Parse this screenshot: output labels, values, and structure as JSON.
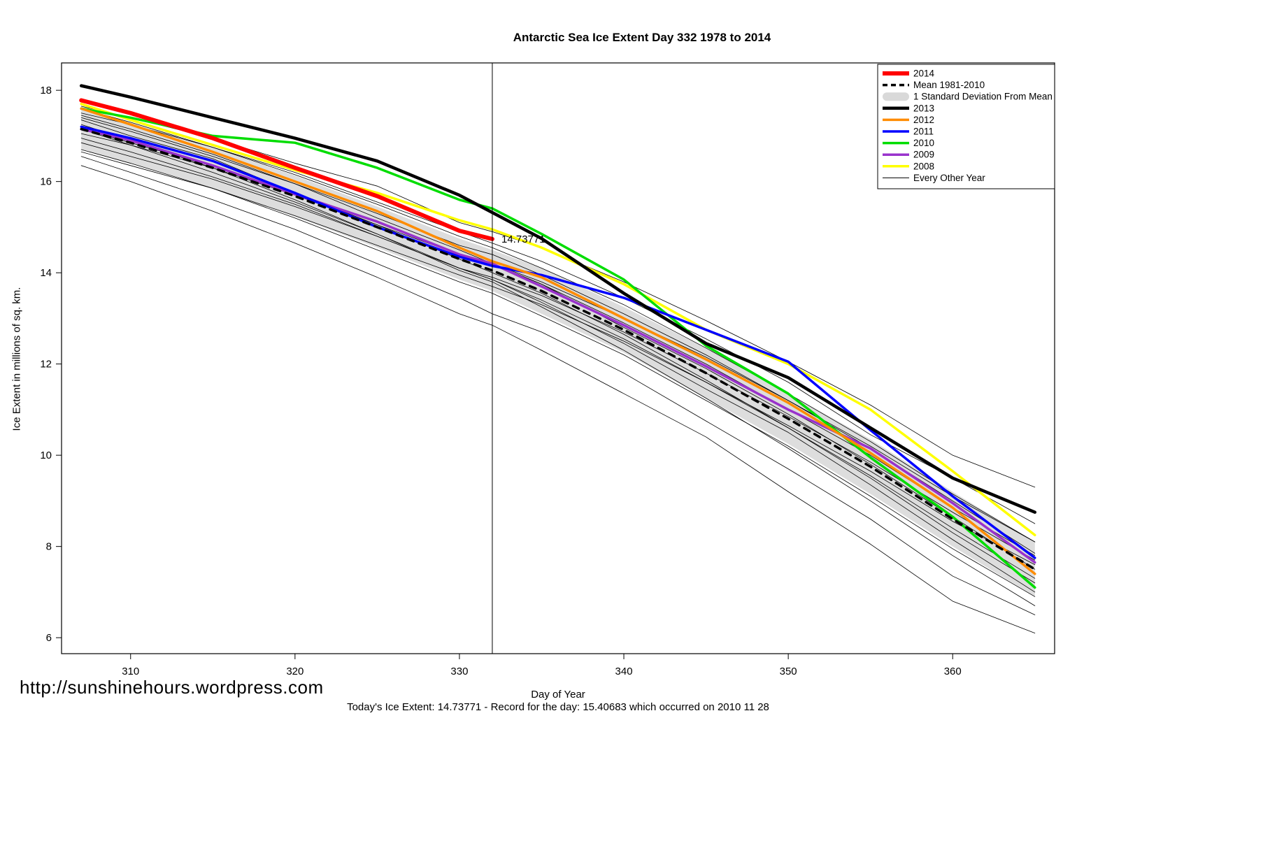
{
  "page": {
    "footer_url": "http://sunshinehours.wordpress.com",
    "footer_status": "Today's Ice Extent: 14.73771  - Record for the day: 15.40683 which occurred on 2010 11 28"
  },
  "chart_data": {
    "type": "line",
    "title": "Antarctic Sea Ice Extent Day 332 1978 to 2014",
    "xlabel": "Day of Year",
    "ylabel": "Ice Extent in millions of sq. km.",
    "xlim": [
      305.8,
      366.2
    ],
    "ylim": [
      5.65,
      18.6
    ],
    "xticks": [
      310,
      320,
      330,
      340,
      350,
      360
    ],
    "yticks": [
      6,
      8,
      10,
      12,
      14,
      16,
      18
    ],
    "grid": false,
    "legend_position": "top-right",
    "x": [
      307,
      310,
      315,
      320,
      325,
      330,
      332,
      335,
      340,
      345,
      350,
      355,
      360,
      365
    ],
    "vline_x": 332,
    "annotation": {
      "text": "14.73771",
      "x": 332.3,
      "y": 14.74,
      "color": "#ff0000"
    },
    "mean": {
      "name": "Mean 1981-2010",
      "color": "#000000",
      "width": 3.5,
      "values": [
        17.15,
        16.85,
        16.3,
        15.68,
        15.0,
        14.3,
        14.05,
        13.6,
        12.75,
        11.8,
        10.8,
        9.75,
        8.6,
        7.5
      ]
    },
    "band": {
      "name": "1 Standard Deviation From Mean",
      "color": "#d9d9d9",
      "upper": [
        17.6,
        17.3,
        16.75,
        16.13,
        15.45,
        14.75,
        14.5,
        14.1,
        13.25,
        12.35,
        11.35,
        10.35,
        9.2,
        8.1
      ],
      "lower": [
        16.7,
        16.4,
        15.85,
        15.23,
        14.55,
        13.85,
        13.6,
        13.1,
        12.25,
        11.25,
        10.25,
        9.15,
        8.0,
        6.9
      ]
    },
    "series": [
      {
        "name": "2014",
        "color": "#ff0000",
        "width": 6,
        "values": [
          17.78,
          17.5,
          16.95,
          16.3,
          15.68,
          14.92,
          14.74,
          null,
          null,
          null,
          null,
          null,
          null,
          null
        ]
      },
      {
        "name": "2013",
        "color": "#000000",
        "width": 4.5,
        "values": [
          18.1,
          17.85,
          17.4,
          16.95,
          16.45,
          15.7,
          15.32,
          14.75,
          13.55,
          12.45,
          11.7,
          10.6,
          9.5,
          8.75
        ]
      },
      {
        "name": "2012",
        "color": "#ff8c00",
        "width": 3.5,
        "values": [
          17.6,
          17.25,
          16.65,
          16.0,
          15.35,
          14.55,
          14.25,
          13.9,
          13.0,
          12.1,
          11.15,
          10.05,
          8.85,
          7.4
        ]
      },
      {
        "name": "2011",
        "color": "#0000ff",
        "width": 3.5,
        "values": [
          17.2,
          16.95,
          16.45,
          15.75,
          15.0,
          14.35,
          14.15,
          13.95,
          13.45,
          12.75,
          12.05,
          10.55,
          9.1,
          7.75
        ]
      },
      {
        "name": "2010",
        "color": "#00dd00",
        "width": 3.5,
        "values": [
          17.6,
          17.4,
          17.0,
          16.85,
          16.3,
          15.6,
          15.41,
          14.85,
          13.85,
          12.4,
          11.35,
          9.95,
          8.65,
          7.1
        ]
      },
      {
        "name": "2009",
        "color": "#9932cc",
        "width": 3.5,
        "values": [
          17.15,
          16.9,
          16.35,
          15.72,
          15.12,
          14.4,
          14.2,
          13.7,
          12.85,
          11.95,
          11.0,
          10.15,
          8.95,
          7.65
        ]
      },
      {
        "name": "2008",
        "color": "#ffff00",
        "width": 3.5,
        "values": [
          17.7,
          17.35,
          16.8,
          16.25,
          15.75,
          15.15,
          14.95,
          14.55,
          13.75,
          12.75,
          12.0,
          11.0,
          9.65,
          8.25
        ]
      }
    ],
    "other_years": {
      "name": "Every Other Year",
      "color": "#000000",
      "width": 0.8,
      "series": [
        [
          17.65,
          17.4,
          16.95,
          16.4,
          15.9,
          15.1,
          14.9,
          14.55,
          13.8,
          12.95,
          12.05,
          11.1,
          10.0,
          9.3
        ],
        [
          17.6,
          17.3,
          16.75,
          16.15,
          15.5,
          14.8,
          14.55,
          14.1,
          13.3,
          12.35,
          11.35,
          10.3,
          9.15,
          8.1
        ],
        [
          17.45,
          17.15,
          16.6,
          15.95,
          15.2,
          14.5,
          14.2,
          13.75,
          12.8,
          11.9,
          10.9,
          9.8,
          8.65,
          7.5
        ],
        [
          17.35,
          17.0,
          16.5,
          15.75,
          15.05,
          14.3,
          14.0,
          13.55,
          12.65,
          11.65,
          10.6,
          9.5,
          8.3,
          7.2
        ],
        [
          17.15,
          16.85,
          16.35,
          15.75,
          15.1,
          14.4,
          14.2,
          13.75,
          12.9,
          12.0,
          11.0,
          10.0,
          8.85,
          7.8
        ],
        [
          17.15,
          16.8,
          16.2,
          15.55,
          14.85,
          14.1,
          13.85,
          13.35,
          12.45,
          11.45,
          10.5,
          9.35,
          8.15,
          7.0
        ],
        [
          16.95,
          16.65,
          16.1,
          15.5,
          14.8,
          14.1,
          13.85,
          13.4,
          12.55,
          11.6,
          10.6,
          9.55,
          8.4,
          7.3
        ],
        [
          16.85,
          16.55,
          16.05,
          15.45,
          14.8,
          14.1,
          13.9,
          13.5,
          12.7,
          11.8,
          10.85,
          9.85,
          8.75,
          7.7
        ],
        [
          16.7,
          16.4,
          15.85,
          15.2,
          14.5,
          13.8,
          13.55,
          13.05,
          12.2,
          11.2,
          10.2,
          9.1,
          7.95,
          6.9
        ],
        [
          16.55,
          16.2,
          15.6,
          14.95,
          14.2,
          13.45,
          13.1,
          12.7,
          11.8,
          10.75,
          9.7,
          8.6,
          7.35,
          6.5
        ],
        [
          16.35,
          16.0,
          15.35,
          14.65,
          13.9,
          13.1,
          12.85,
          12.3,
          11.35,
          10.4,
          9.2,
          8.05,
          6.8,
          6.1
        ],
        [
          17.25,
          16.9,
          16.3,
          15.6,
          14.85,
          14.05,
          13.8,
          13.25,
          12.3,
          11.25,
          10.15,
          9.0,
          7.8,
          6.7
        ],
        [
          17.5,
          17.25,
          16.75,
          16.2,
          15.55,
          14.9,
          14.65,
          14.25,
          13.45,
          12.55,
          11.6,
          10.45,
          9.5,
          8.5
        ],
        [
          17.05,
          16.8,
          16.3,
          15.7,
          15.05,
          14.4,
          14.2,
          13.8,
          13.0,
          12.15,
          11.2,
          10.2,
          9.1,
          8.1
        ],
        [
          16.65,
          16.35,
          15.85,
          15.25,
          14.6,
          13.95,
          13.7,
          13.3,
          12.5,
          11.6,
          10.65,
          9.65,
          8.55,
          7.6
        ],
        [
          17.4,
          17.1,
          16.55,
          15.95,
          15.3,
          14.6,
          14.4,
          13.95,
          13.1,
          12.2,
          11.2,
          10.15,
          9.0,
          7.85
        ]
      ]
    },
    "legend": [
      {
        "label": "2014",
        "swatch": "line",
        "color": "#ff0000",
        "width": 6
      },
      {
        "label": "Mean 1981-2010",
        "swatch": "dashed",
        "color": "#000000",
        "width": 3.5
      },
      {
        "label": "1 Standard Deviation From Mean",
        "swatch": "band",
        "color": "#d9d9d9",
        "width": 10
      },
      {
        "label": "2013",
        "swatch": "line",
        "color": "#000000",
        "width": 4.5
      },
      {
        "label": "2012",
        "swatch": "line",
        "color": "#ff8c00",
        "width": 3.5
      },
      {
        "label": "2011",
        "swatch": "line",
        "color": "#0000ff",
        "width": 3.5
      },
      {
        "label": "2010",
        "swatch": "line",
        "color": "#00dd00",
        "width": 3.5
      },
      {
        "label": "2009",
        "swatch": "line",
        "color": "#9932cc",
        "width": 3.5
      },
      {
        "label": "2008",
        "swatch": "line",
        "color": "#ffff00",
        "width": 3.5
      },
      {
        "label": "Every Other Year",
        "swatch": "thin",
        "color": "#000000",
        "width": 1
      }
    ]
  }
}
